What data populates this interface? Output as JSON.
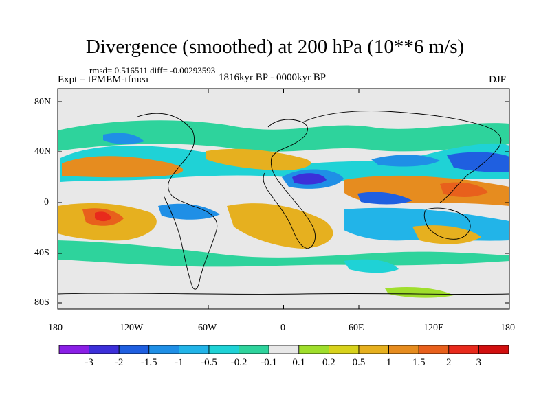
{
  "title": "Divergence (smoothed) at 200 hPa (10**6 m/s)",
  "stats": "rmsd= 0.516511 diff= -0.00293593",
  "experiment": "Expt = tFMEM-tfmea",
  "period": "1816kyr BP - 0000kyr BP",
  "season": "DJF",
  "lat_labels": [
    "80N",
    "40N",
    "0",
    "40S",
    "80S"
  ],
  "lon_labels": [
    "180",
    "120W",
    "60W",
    "0",
    "60E",
    "120E",
    "180"
  ],
  "colorbar": {
    "labels": [
      "-3",
      "-2",
      "-1.5",
      "-1",
      "-0.5",
      "-0.2",
      "-0.1",
      "0.1",
      "0.2",
      "0.5",
      "1",
      "1.5",
      "2",
      "3"
    ],
    "colors": [
      "#8a1fe6",
      "#3c2fd9",
      "#1f5fe0",
      "#1f8fe6",
      "#22b4e8",
      "#1fd2d6",
      "#2ed39c",
      "#e8e8e8",
      "#9fde2c",
      "#d8d21c",
      "#e6b01f",
      "#e68c1f",
      "#e8601c",
      "#e82a1c",
      "#d10f0f"
    ]
  }
}
